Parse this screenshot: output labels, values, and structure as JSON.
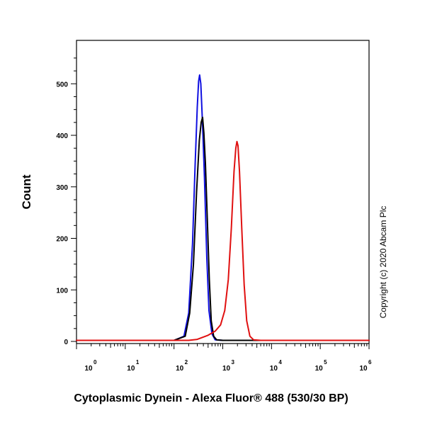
{
  "chart_data": {
    "type": "line",
    "xlabel": "Cytoplasmic Dynein - Alexa Fluor® 488 (530/30 BP)",
    "ylabel": "Count",
    "x_scale": "log",
    "xlim": [
      1,
      1000000
    ],
    "ylim": [
      0,
      565
    ],
    "x_ticks": [
      {
        "base": "10",
        "exp": "0",
        "value": 1
      },
      {
        "base": "10",
        "exp": "1",
        "value": 10
      },
      {
        "base": "10",
        "exp": "2",
        "value": 100
      },
      {
        "base": "10",
        "exp": "3",
        "value": 1000
      },
      {
        "base": "10",
        "exp": "4",
        "value": 10000
      },
      {
        "base": "10",
        "exp": "5",
        "value": 100000
      },
      {
        "base": "10",
        "exp": "6",
        "value": 1000000
      }
    ],
    "y_ticks": [
      {
        "label": "0",
        "value": 0
      },
      {
        "label": "100",
        "value": 100
      },
      {
        "label": "200",
        "value": 200
      },
      {
        "label": "300",
        "value": 300
      },
      {
        "label": "400",
        "value": 400
      },
      {
        "label": "500",
        "value": 500
      }
    ],
    "grid": false,
    "legend": "none",
    "series": [
      {
        "color": "#1010e0",
        "points": [
          [
            1,
            2
          ],
          [
            100,
            2
          ],
          [
            160,
            10
          ],
          [
            200,
            55
          ],
          [
            240,
            190
          ],
          [
            270,
            340
          ],
          [
            300,
            455
          ],
          [
            320,
            505
          ],
          [
            335,
            517
          ],
          [
            355,
            500
          ],
          [
            385,
            420
          ],
          [
            420,
            320
          ],
          [
            470,
            165
          ],
          [
            520,
            60
          ],
          [
            600,
            15
          ],
          [
            700,
            3
          ],
          [
            1000,
            2
          ],
          [
            1000000,
            2
          ]
        ]
      },
      {
        "color": "#000000",
        "points": [
          [
            1,
            2
          ],
          [
            100,
            2
          ],
          [
            170,
            10
          ],
          [
            210,
            55
          ],
          [
            250,
            150
          ],
          [
            290,
            290
          ],
          [
            330,
            390
          ],
          [
            360,
            425
          ],
          [
            385,
            435
          ],
          [
            410,
            405
          ],
          [
            440,
            345
          ],
          [
            480,
            240
          ],
          [
            530,
            120
          ],
          [
            580,
            40
          ],
          [
            650,
            10
          ],
          [
            750,
            3
          ],
          [
            1000,
            2
          ],
          [
            1000000,
            2
          ]
        ]
      },
      {
        "color": "#e01010",
        "points": [
          [
            1,
            2
          ],
          [
            200,
            2
          ],
          [
            300,
            4
          ],
          [
            500,
            12
          ],
          [
            700,
            20
          ],
          [
            900,
            32
          ],
          [
            1100,
            60
          ],
          [
            1300,
            120
          ],
          [
            1500,
            220
          ],
          [
            1700,
            330
          ],
          [
            1850,
            375
          ],
          [
            1950,
            388
          ],
          [
            2050,
            380
          ],
          [
            2200,
            330
          ],
          [
            2450,
            220
          ],
          [
            2750,
            110
          ],
          [
            3100,
            40
          ],
          [
            3600,
            10
          ],
          [
            4300,
            3
          ],
          [
            6000,
            2
          ],
          [
            1000000,
            2
          ]
        ]
      }
    ]
  },
  "copyright": "Copyright (c) 2020 Abcam Plc"
}
